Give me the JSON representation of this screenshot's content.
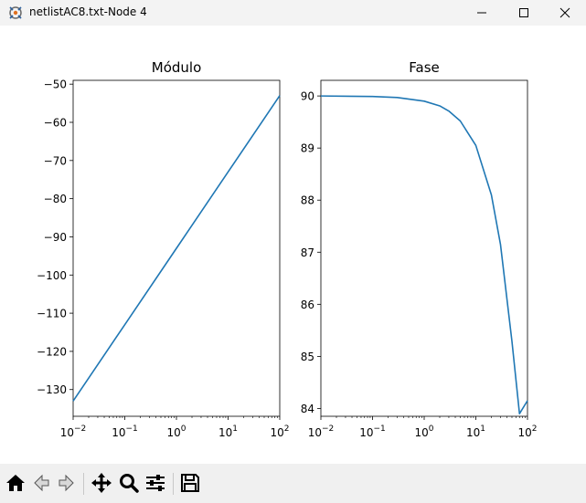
{
  "window": {
    "title": "netlistAC8.txt-Node 4",
    "controls": [
      "minimize",
      "maximize",
      "close"
    ]
  },
  "toolbar": {
    "buttons": [
      {
        "name": "home",
        "icon": "home-icon"
      },
      {
        "name": "back",
        "icon": "arrow-left-icon"
      },
      {
        "name": "forward",
        "icon": "arrow-right-icon"
      },
      {
        "name": "pan",
        "icon": "move-icon"
      },
      {
        "name": "zoom",
        "icon": "magnifier-icon"
      },
      {
        "name": "configure-subplots",
        "icon": "sliders-icon"
      },
      {
        "name": "save",
        "icon": "floppy-disk-icon"
      }
    ]
  },
  "colors": {
    "line": "#1f77b4",
    "titlebar": "#f3f3f3",
    "toolbar": "#f0f0f0"
  },
  "chart_data": [
    {
      "type": "line",
      "title": "Módulo",
      "xlabel": "",
      "ylabel": "",
      "xscale": "log",
      "xlim": [
        0.01,
        100
      ],
      "ylim": [
        -137,
        -49
      ],
      "xticks": [
        "10^-2",
        "10^-1",
        "10^0",
        "10^1",
        "10^2"
      ],
      "yticks": [
        -50,
        -60,
        -70,
        -80,
        -90,
        -100,
        -110,
        -120,
        -130
      ],
      "grid": false,
      "series": [
        {
          "x": [
            0.01,
            0.1,
            1,
            10,
            100
          ],
          "y": [
            -133,
            -113,
            -93,
            -73,
            -53
          ]
        }
      ]
    },
    {
      "type": "line",
      "title": "Fase",
      "xlabel": "",
      "ylabel": "",
      "xscale": "log",
      "xlim": [
        0.01,
        100
      ],
      "ylim": [
        83.85,
        90.3
      ],
      "xticks": [
        "10^-2",
        "10^-1",
        "10^0",
        "10^1",
        "10^2"
      ],
      "yticks": [
        90,
        89,
        88,
        87,
        86,
        85,
        84
      ],
      "grid": false,
      "series": [
        {
          "x": [
            0.01,
            0.1,
            0.3,
            1,
            2,
            3,
            5,
            10,
            20,
            30,
            50,
            70,
            100
          ],
          "y": [
            90.0,
            89.99,
            89.97,
            89.9,
            89.81,
            89.71,
            89.52,
            89.05,
            88.1,
            87.15,
            85.29,
            83.9,
            84.15
          ]
        }
      ]
    }
  ]
}
